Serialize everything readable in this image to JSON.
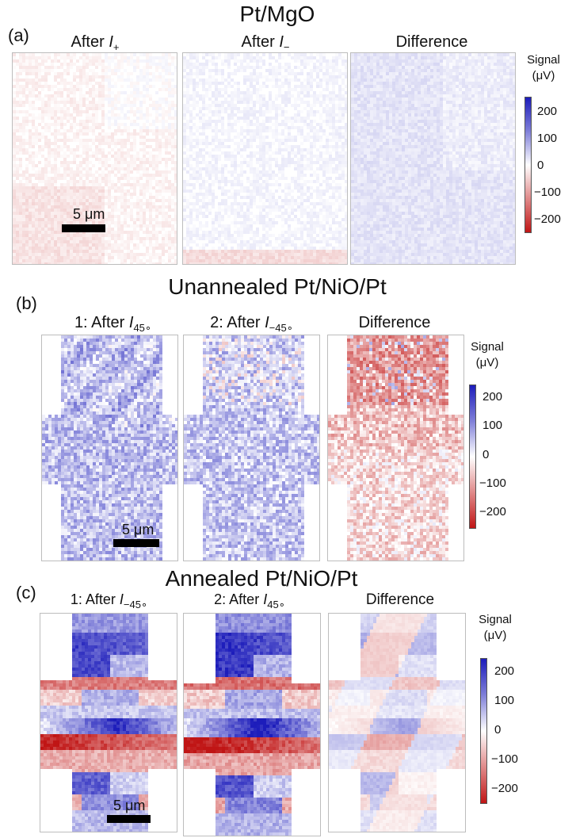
{
  "figure": {
    "a": {
      "label": "(a)",
      "title": "Pt/MgO",
      "panels": [
        {
          "prefix": "After ",
          "var": "I",
          "sub": "+",
          "sup": ""
        },
        {
          "prefix": "After ",
          "var": "I",
          "sub": "−",
          "sup": ""
        },
        {
          "prefix": "Difference",
          "var": "",
          "sub": "",
          "sup": ""
        }
      ],
      "scalebar": "5 μm"
    },
    "b": {
      "label": "(b)",
      "title": "Unannealed Pt/NiO/Pt",
      "panels": [
        {
          "prefix": "1: After ",
          "var": "I",
          "sub": "45",
          "sup": "∘"
        },
        {
          "prefix": "2: After ",
          "var": "I",
          "sub": "−45",
          "sup": "∘"
        },
        {
          "prefix": "Difference",
          "var": "",
          "sub": "",
          "sup": ""
        }
      ],
      "scalebar": "5 μm"
    },
    "c": {
      "label": "(c)",
      "title": "Annealed Pt/NiO/Pt",
      "panels": [
        {
          "prefix": "1: After ",
          "var": "I",
          "sub": "−45",
          "sup": "∘"
        },
        {
          "prefix": "2: After ",
          "var": "I",
          "sub": "45",
          "sup": "∘"
        },
        {
          "prefix": "Difference",
          "var": "",
          "sub": "",
          "sup": ""
        }
      ],
      "scalebar": "5 μm"
    },
    "colorbar": {
      "label_line1": "Signal",
      "label_line2": "(μV)",
      "ticks": [
        "200",
        "100",
        "0",
        "−100",
        "−200"
      ],
      "range": [
        -250,
        250
      ],
      "color_positive": "#1d1dbb",
      "color_zero": "#ffffff",
      "color_negative": "#c01515"
    }
  }
}
